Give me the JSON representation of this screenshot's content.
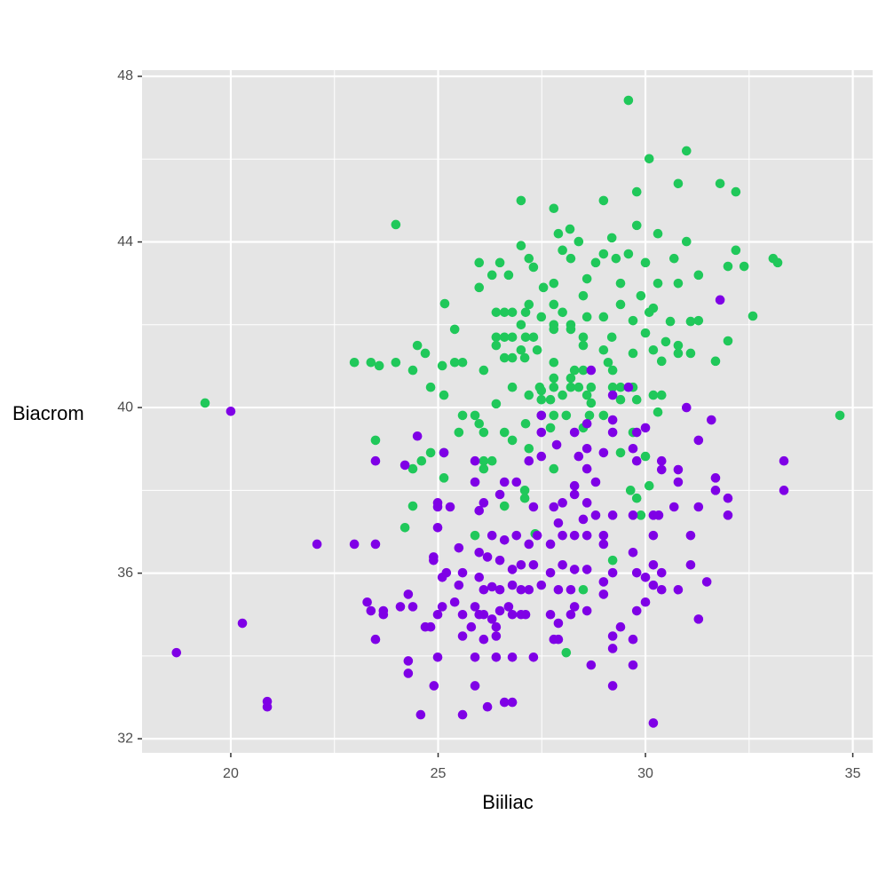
{
  "chart_data": {
    "type": "scatter",
    "x_label": "Biiliac",
    "y_label": "Biacrom",
    "xlim": [
      17.86,
      35.48
    ],
    "ylim": [
      31.66,
      48.15
    ],
    "xticks": [
      20,
      25,
      30,
      35
    ],
    "yticks": [
      32,
      36,
      40,
      44,
      48
    ],
    "grid": true,
    "series": [
      {
        "color": "#20c85a",
        "x": [
          19.38,
          23.98,
          34.69,
          29.59,
          30.99,
          30.09,
          31.8,
          32.18,
          30.79,
          29.79,
          27.0,
          27.79,
          28.99,
          28.18,
          27.9,
          29.79,
          29.19,
          28.39,
          30.3,
          30.99,
          27.0,
          28.0,
          27.19,
          25.99,
          26.49,
          26.7,
          27.3,
          28.2,
          28.8,
          28.99,
          29.29,
          29.59,
          30.0,
          30.69,
          32.18,
          31.99,
          32.38,
          33.08,
          33.19,
          26.3,
          27.54,
          27.79,
          28.59,
          29.4,
          30.3,
          30.79,
          31.28,
          25.99,
          25.16,
          28.5,
          29.89,
          27.19,
          27.79,
          29.4,
          26.4,
          26.6,
          26.79,
          27.11,
          27.49,
          28.0,
          28.59,
          28.99,
          30.09,
          30.19,
          30.6,
          31.28,
          32.59,
          25.4,
          27.0,
          27.79,
          28.2,
          29.7,
          31.09,
          26.4,
          26.6,
          26.79,
          27.11,
          27.3,
          27.79,
          28.2,
          28.5,
          29.19,
          30.0,
          30.49,
          30.79,
          31.99,
          24.5,
          24.69,
          26.4,
          27.0,
          27.39,
          28.5,
          28.99,
          29.7,
          30.19,
          30.79,
          31.09,
          22.98,
          23.38,
          23.58,
          23.98,
          24.39,
          25.1,
          25.4,
          25.59,
          26.1,
          26.6,
          26.79,
          27.09,
          27.79,
          29.1,
          30.39,
          31.69,
          28.29,
          28.5,
          29.21,
          27.79,
          28.2,
          26.79,
          27.45,
          27.79,
          28.2,
          28.39,
          28.69,
          29.21,
          29.4,
          29.7,
          30.19,
          30.39,
          24.82,
          25.14,
          27.19,
          27.49,
          28.0,
          28.59,
          26.4,
          27.49,
          27.71,
          28.69,
          29.4,
          29.79,
          25.59,
          25.89,
          27.49,
          27.79,
          28.09,
          28.65,
          28.99,
          30.3,
          25.99,
          27.11,
          27.71,
          28.5,
          29.7,
          23.49,
          25.5,
          26.1,
          26.6,
          26.79,
          27.19,
          29.4,
          30.0,
          24.82,
          25.14,
          26.1,
          26.3,
          24.6,
          24.39,
          25.14,
          27.79,
          26.1,
          30.09,
          27.09,
          29.64,
          27.09,
          29.79,
          26.6,
          24.39,
          29.89,
          24.2,
          25.89,
          27.34,
          29.21,
          28.5,
          28.09
        ],
        "y": [
          40.11,
          44.42,
          39.81,
          47.42,
          46.2,
          46.01,
          45.41,
          45.21,
          45.41,
          45.21,
          45.0,
          44.81,
          45.0,
          44.31,
          44.2,
          44.4,
          44.1,
          44.01,
          44.2,
          44.01,
          43.91,
          43.8,
          43.6,
          43.5,
          43.5,
          43.2,
          43.39,
          43.6,
          43.5,
          43.71,
          43.6,
          43.71,
          43.5,
          43.6,
          43.8,
          43.41,
          43.41,
          43.6,
          43.5,
          43.2,
          42.9,
          43.0,
          43.11,
          43.0,
          43.0,
          43.0,
          43.2,
          42.9,
          42.51,
          42.7,
          42.7,
          42.49,
          42.49,
          42.49,
          42.3,
          42.3,
          42.3,
          42.3,
          42.19,
          42.3,
          42.19,
          42.19,
          42.3,
          42.4,
          42.08,
          42.1,
          42.21,
          41.89,
          42.0,
          42.0,
          42.0,
          42.1,
          42.08,
          41.7,
          41.7,
          41.7,
          41.7,
          41.7,
          41.89,
          41.89,
          41.7,
          41.7,
          41.8,
          41.59,
          41.5,
          41.61,
          41.5,
          41.31,
          41.5,
          41.39,
          41.39,
          41.5,
          41.39,
          41.31,
          41.39,
          41.31,
          41.31,
          41.09,
          41.09,
          41.01,
          41.09,
          40.9,
          41.01,
          41.09,
          41.09,
          40.9,
          41.2,
          41.2,
          41.2,
          41.09,
          41.09,
          41.12,
          41.12,
          40.9,
          40.9,
          40.9,
          40.71,
          40.71,
          40.49,
          40.49,
          40.49,
          40.49,
          40.49,
          40.49,
          40.49,
          40.49,
          40.49,
          40.3,
          40.3,
          40.49,
          40.3,
          40.3,
          40.41,
          40.3,
          40.3,
          40.09,
          40.19,
          40.19,
          40.11,
          40.19,
          40.19,
          39.81,
          39.81,
          39.81,
          39.81,
          39.81,
          39.81,
          39.81,
          39.89,
          39.61,
          39.61,
          39.51,
          39.51,
          39.4,
          39.21,
          39.4,
          39.4,
          39.4,
          39.21,
          39.01,
          38.91,
          38.82,
          38.91,
          38.91,
          38.71,
          38.71,
          38.71,
          38.52,
          38.3,
          38.52,
          38.52,
          38.11,
          38.0,
          38.0,
          37.81,
          37.81,
          37.62,
          37.62,
          37.4,
          37.1,
          36.91,
          36.95,
          36.31,
          35.6,
          34.08
        ]
      },
      {
        "color": "#7f00e6",
        "x": [
          18.69,
          20.0,
          20.28,
          20.88,
          20.88,
          22.08,
          22.98,
          23.49,
          23.29,
          23.38,
          23.68,
          23.68,
          23.49,
          24.09,
          24.28,
          24.39,
          24.28,
          24.28,
          24.69,
          24.82,
          24.9,
          24.58,
          25.59,
          24.99,
          24.99,
          25.1,
          24.89,
          24.89,
          25.1,
          25.2,
          25.59,
          25.5,
          25.4,
          25.59,
          25.59,
          25.8,
          25.99,
          25.89,
          26.1,
          26.3,
          26.4,
          26.4,
          26.1,
          25.89,
          26.4,
          26.79,
          27.3,
          25.89,
          26.19,
          26.6,
          26.79,
          30.19,
          29.21,
          28.69,
          29.7,
          29.21,
          29.21,
          29.7,
          29.4,
          27.9,
          27.9,
          28.2,
          28.29,
          28.59,
          27.71,
          27.11,
          27.0,
          26.79,
          26.7,
          26.49,
          26.1,
          26.3,
          26.49,
          26.79,
          27.0,
          27.19,
          27.49,
          27.9,
          28.2,
          28.99,
          29.79,
          30.0,
          30.39,
          30.79,
          31.28,
          31.48,
          31.09,
          30.19,
          30.39,
          30.19,
          30.0,
          29.79,
          29.21,
          28.99,
          28.59,
          28.29,
          28.0,
          27.71,
          27.3,
          27.0,
          26.79,
          26.49,
          26.19,
          25.99,
          25.5,
          24.99,
          24.99,
          24.99,
          25.29,
          25.99,
          26.1,
          25.89,
          26.6,
          26.89,
          26.49,
          26.89,
          26.6,
          26.3,
          27.19,
          27.71,
          27.39,
          28.0,
          28.29,
          28.59,
          28.99,
          28.99,
          29.7,
          30.19,
          31.09,
          27.9,
          28.5,
          28.8,
          29.21,
          29.7,
          30.19,
          30.69,
          31.28,
          31.99,
          31.99,
          31.69,
          31.69,
          30.79,
          30.79,
          30.39,
          30.39,
          29.79,
          29.7,
          30.0,
          29.79,
          29.21,
          28.59,
          28.29,
          28.59,
          28.39,
          28.59,
          28.99,
          28.8,
          28.29,
          28.29,
          28.59,
          28.0,
          27.79,
          27.3,
          27.49,
          27.49,
          27.49,
          29.21,
          30.99,
          31.59,
          31.28,
          33.34,
          33.34,
          31.8,
          28.69,
          29.59,
          29.21,
          24.5,
          23.49,
          24.2,
          25.14,
          25.89,
          27.19,
          27.86,
          30.32,
          25.99,
          27.79
        ],
        "y": [
          34.08,
          39.91,
          34.79,
          32.9,
          32.77,
          36.7,
          36.7,
          36.7,
          35.3,
          35.09,
          35.09,
          35.0,
          34.4,
          35.19,
          35.49,
          35.19,
          33.88,
          33.58,
          34.7,
          34.7,
          33.28,
          32.58,
          32.58,
          33.97,
          35.0,
          35.19,
          36.39,
          36.31,
          35.9,
          36.01,
          36.01,
          35.71,
          35.3,
          35.0,
          34.48,
          34.7,
          35.0,
          35.19,
          35.0,
          34.89,
          34.7,
          34.48,
          34.4,
          33.97,
          33.97,
          33.97,
          33.97,
          33.28,
          32.77,
          32.88,
          32.88,
          32.38,
          33.28,
          33.78,
          33.78,
          34.18,
          34.48,
          34.4,
          34.7,
          34.4,
          34.79,
          35.0,
          35.19,
          35.09,
          35.0,
          35.0,
          35.0,
          35.0,
          35.19,
          35.09,
          35.6,
          35.67,
          35.6,
          35.71,
          35.6,
          35.6,
          35.71,
          35.6,
          35.6,
          35.49,
          35.09,
          35.3,
          35.6,
          35.6,
          34.89,
          35.79,
          36.2,
          36.2,
          36.01,
          35.71,
          35.9,
          36.01,
          36.01,
          35.79,
          36.09,
          36.09,
          36.2,
          36.01,
          36.2,
          36.2,
          36.09,
          36.31,
          36.39,
          36.5,
          36.61,
          37.1,
          37.6,
          37.7,
          37.6,
          37.51,
          37.7,
          38.2,
          38.2,
          38.2,
          37.9,
          36.91,
          36.8,
          36.91,
          36.7,
          36.7,
          36.91,
          36.91,
          36.91,
          36.91,
          36.91,
          36.7,
          36.5,
          36.91,
          36.91,
          37.21,
          37.3,
          37.4,
          37.4,
          37.4,
          37.4,
          37.6,
          37.6,
          37.4,
          37.81,
          38.0,
          38.3,
          38.2,
          38.5,
          38.5,
          38.71,
          38.71,
          39.01,
          39.51,
          39.4,
          39.4,
          39.61,
          39.4,
          39.01,
          38.82,
          38.52,
          38.91,
          38.2,
          38.11,
          37.9,
          37.7,
          37.7,
          37.6,
          37.6,
          38.82,
          39.4,
          39.81,
          39.7,
          40.0,
          39.7,
          39.21,
          38.71,
          38.0,
          42.6,
          40.9,
          40.49,
          40.3,
          39.31,
          38.71,
          38.61,
          38.91,
          38.71,
          38.71,
          39.1,
          37.4,
          35.9,
          34.4
        ]
      }
    ]
  }
}
